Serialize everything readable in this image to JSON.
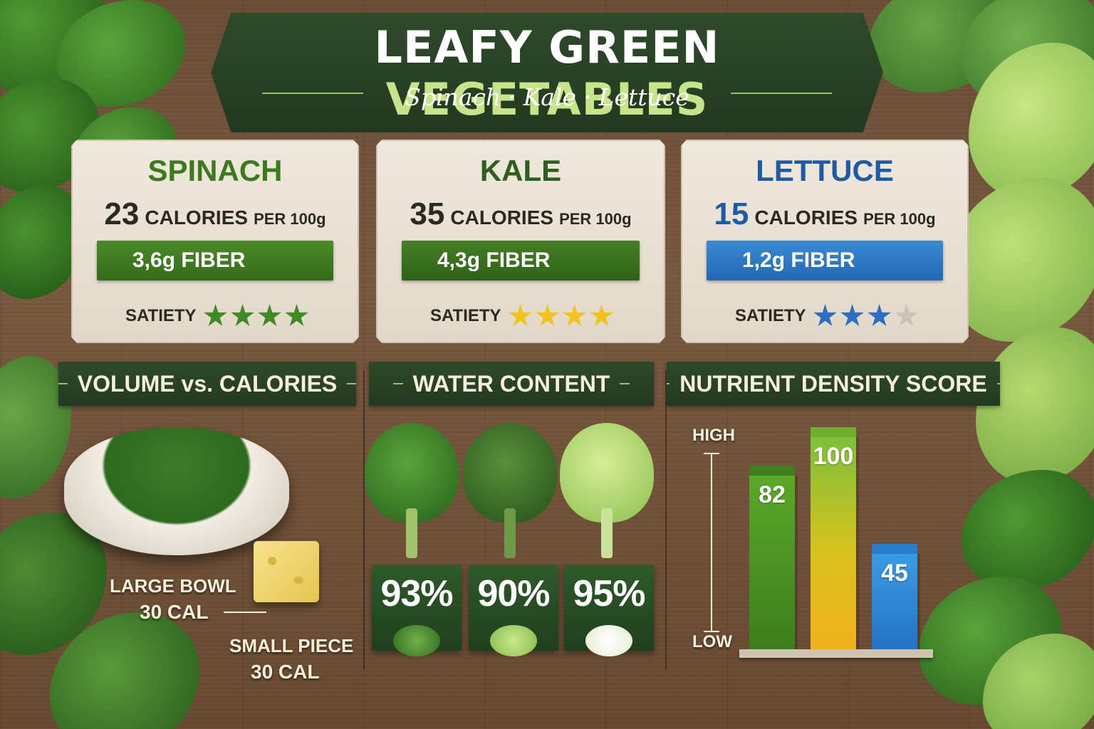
{
  "header": {
    "title_main": "LEAFY GREEN",
    "title_accent": "VEGETABLES",
    "subtitle": "Spinach · Kale · Lettuce"
  },
  "cards": [
    {
      "name": "SPINACH",
      "calories": "23",
      "calories_label": "CALORIES",
      "calories_unit": "PER 100g",
      "fiber": "3,6g FIBER",
      "satiety_label": "SATIETY",
      "satiety_stars": 4,
      "name_color": "#3d7a1e",
      "bar_color": "#3f7a22",
      "star_color": "#3f8a24"
    },
    {
      "name": "KALE",
      "calories": "35",
      "calories_label": "CALORIES",
      "calories_unit": "PER 100g",
      "fiber": "4,3g FIBER",
      "satiety_label": "SATIETY",
      "satiety_stars": 4,
      "name_color": "#2f5f1f",
      "bar_color": "#3a7320",
      "star_color": "#f2c31c"
    },
    {
      "name": "LETTUCE",
      "calories": "15",
      "calories_label": "CALORIES",
      "calories_unit": "PER 100g",
      "fiber": "1,2g FIBER",
      "satiety_label": "SATIETY",
      "satiety_stars": 3,
      "name_color": "#1f5aa8",
      "bar_color": "#2a78c4",
      "star_color": "#2a6fc4"
    }
  ],
  "sections": {
    "volume": "VOLUME vs. CALORIES",
    "water": "WATER CONTENT",
    "nutrient": "NUTRIENT DENSITY SCORE"
  },
  "volume": {
    "large_label": "LARGE BOWL",
    "large_cal": "30 CAL",
    "small_label": "SMALL PIECE",
    "small_cal": "30 CAL"
  },
  "water": [
    {
      "percent": "93%",
      "icon": "spinach-icon"
    },
    {
      "percent": "90%",
      "icon": "kale-icon"
    },
    {
      "percent": "95%",
      "icon": "lettuce-icon"
    }
  ],
  "chart_data": {
    "type": "bar",
    "categories": [
      "",
      "",
      ""
    ],
    "values": [
      82,
      100,
      45
    ],
    "value_labels": [
      "82",
      "100",
      "45"
    ],
    "title": "NUTRIENT DENSITY SCORE",
    "y_axis_high": "HIGH",
    "y_axis_low": "LOW",
    "ylim": [
      0,
      100
    ],
    "colors": [
      "#4f9a22",
      "#e0c21c",
      "#2f86d6"
    ]
  }
}
